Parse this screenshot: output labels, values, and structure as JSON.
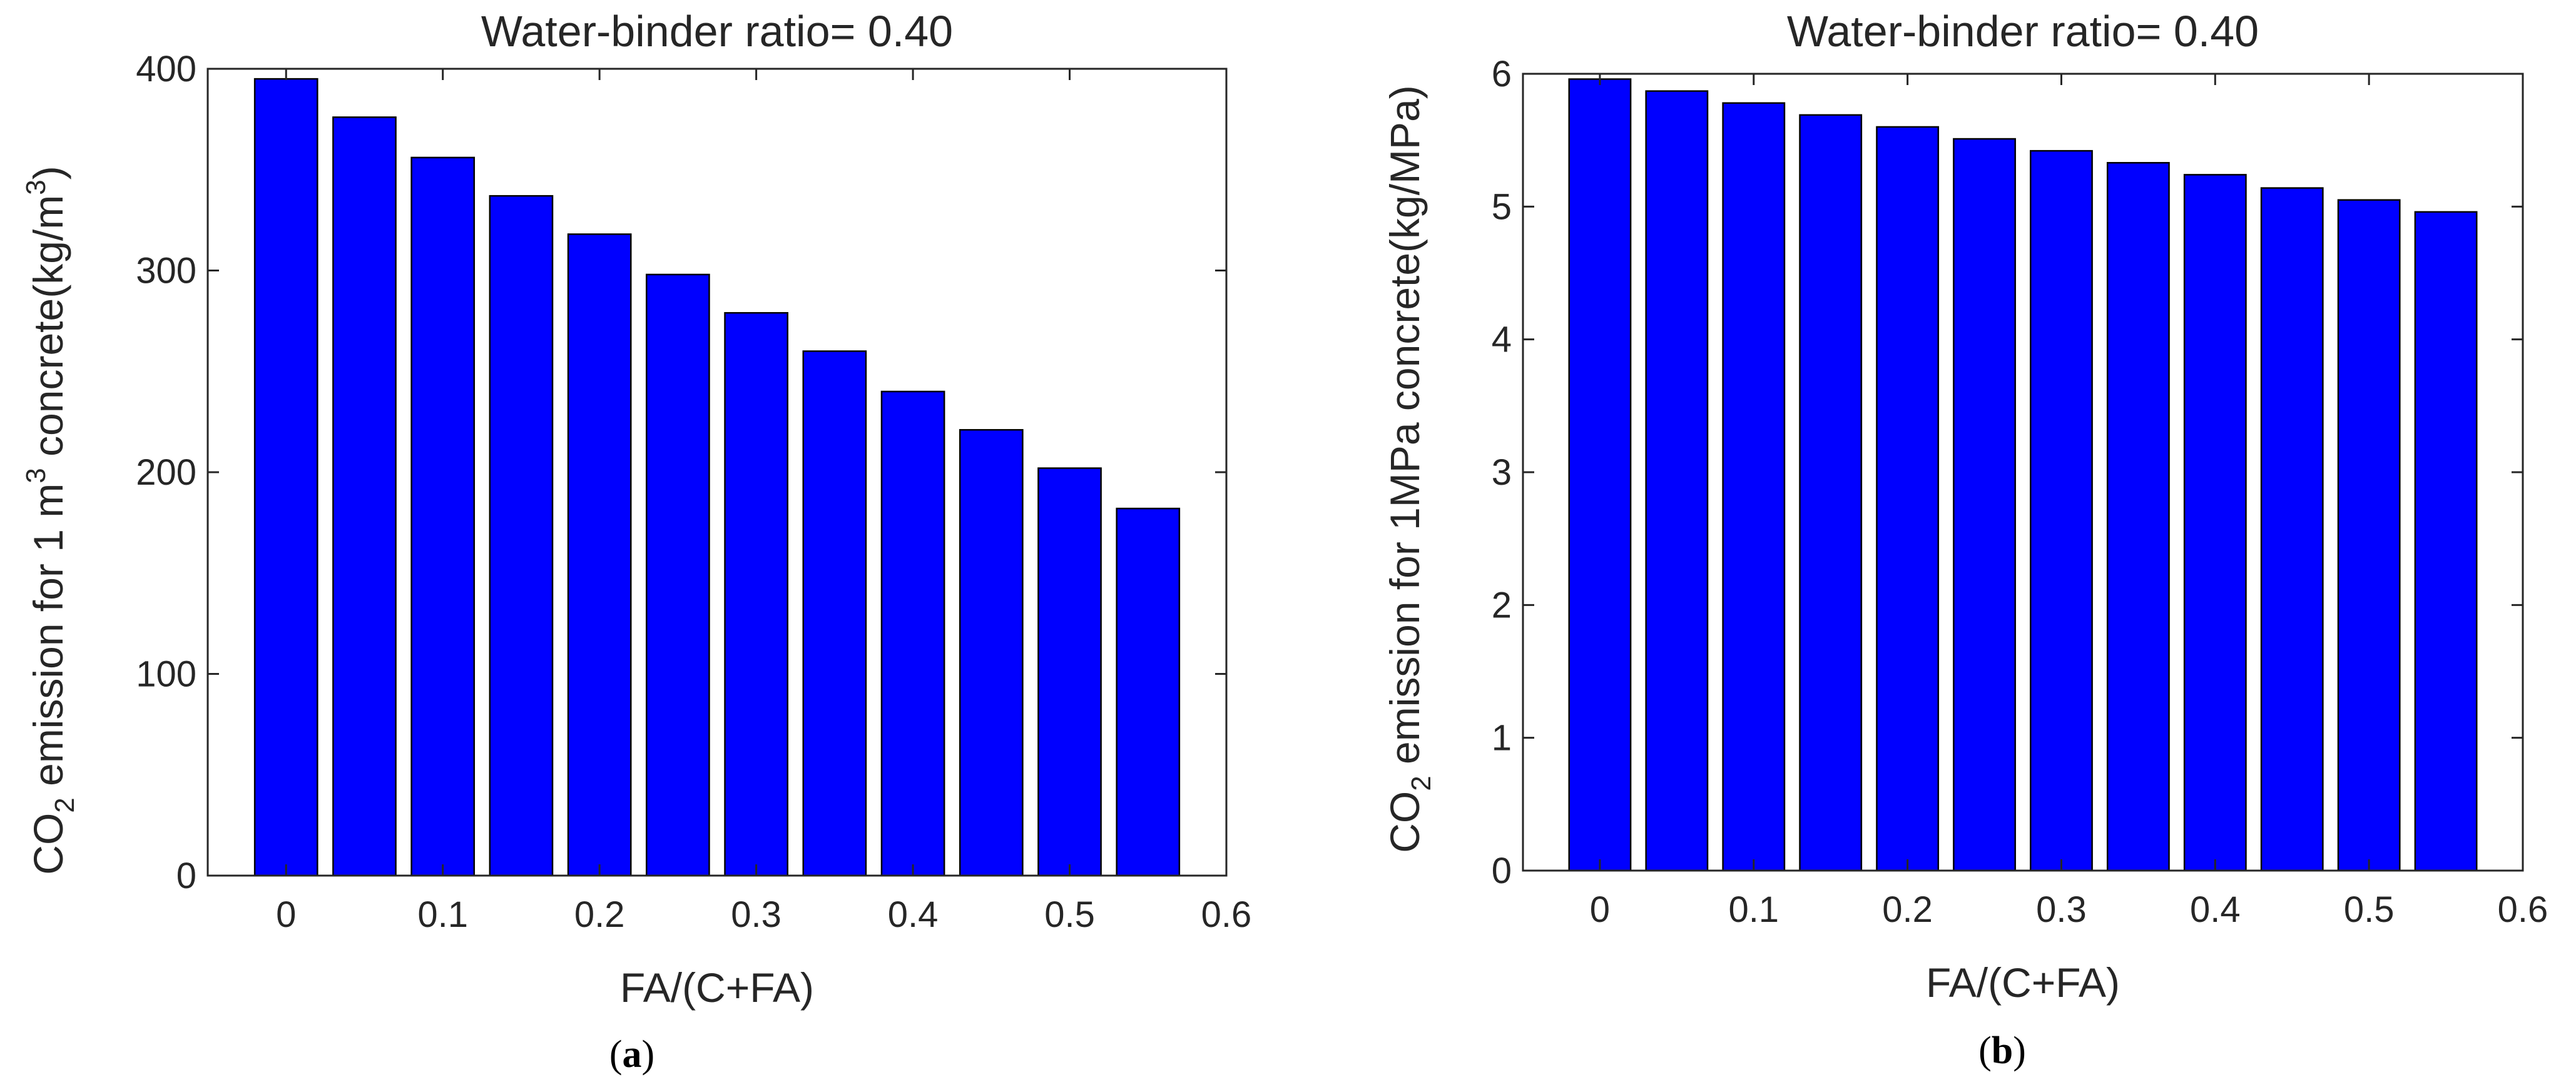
{
  "colors": {
    "bar": "#0000ff",
    "axis": "#262626",
    "bar_edge": "#000000"
  },
  "chart_data": [
    {
      "type": "bar",
      "panel": "a",
      "caption": {
        "open": "(",
        "letter": "a",
        "close": ")"
      },
      "title": "Water-binder ratio= 0.40",
      "xlabel": "FA/(C+FA)",
      "ylabel": {
        "prefix": "CO",
        "sub": "2",
        "middle": " emission for 1 m",
        "sup": "3",
        "suffix": " concrete(kg/m",
        "sup2": "3",
        "end": ")"
      },
      "x": [
        0,
        0.05,
        0.1,
        0.15,
        0.2,
        0.25,
        0.3,
        0.35,
        0.4,
        0.45,
        0.5,
        0.55
      ],
      "values": [
        395,
        376,
        356,
        337,
        318,
        298,
        279,
        260,
        240,
        221,
        202,
        182
      ],
      "xlim": [
        -0.05,
        0.6
      ],
      "ylim": [
        0,
        400
      ],
      "xticks": [
        0,
        0.1,
        0.2,
        0.3,
        0.4,
        0.5,
        0.6
      ],
      "xtick_labels": [
        "0",
        "0.1",
        "0.2",
        "0.3",
        "0.4",
        "0.5",
        "0.6"
      ],
      "yticks": [
        0,
        100,
        200,
        300,
        400
      ],
      "ytick_labels": [
        "0",
        "100",
        "200",
        "300",
        "400"
      ]
    },
    {
      "type": "bar",
      "panel": "b",
      "caption": {
        "open": "(",
        "letter": "b",
        "close": ")"
      },
      "title": "Water-binder ratio= 0.40",
      "xlabel": "FA/(C+FA)",
      "ylabel": {
        "prefix": "CO",
        "sub": "2",
        "middle": " emission for 1MPa concrete(kg/MPa)"
      },
      "x": [
        0,
        0.05,
        0.1,
        0.15,
        0.2,
        0.25,
        0.3,
        0.35,
        0.4,
        0.45,
        0.5,
        0.55
      ],
      "values": [
        5.96,
        5.87,
        5.78,
        5.69,
        5.6,
        5.51,
        5.42,
        5.33,
        5.24,
        5.14,
        5.05,
        4.96
      ],
      "xlim": [
        -0.05,
        0.6
      ],
      "ylim": [
        0,
        6
      ],
      "xticks": [
        0,
        0.1,
        0.2,
        0.3,
        0.4,
        0.5,
        0.6
      ],
      "xtick_labels": [
        "0",
        "0.1",
        "0.2",
        "0.3",
        "0.4",
        "0.5",
        "0.6"
      ],
      "yticks": [
        0,
        1,
        2,
        3,
        4,
        5,
        6
      ],
      "ytick_labels": [
        "0",
        "1",
        "2",
        "3",
        "4",
        "5",
        "6"
      ]
    }
  ]
}
